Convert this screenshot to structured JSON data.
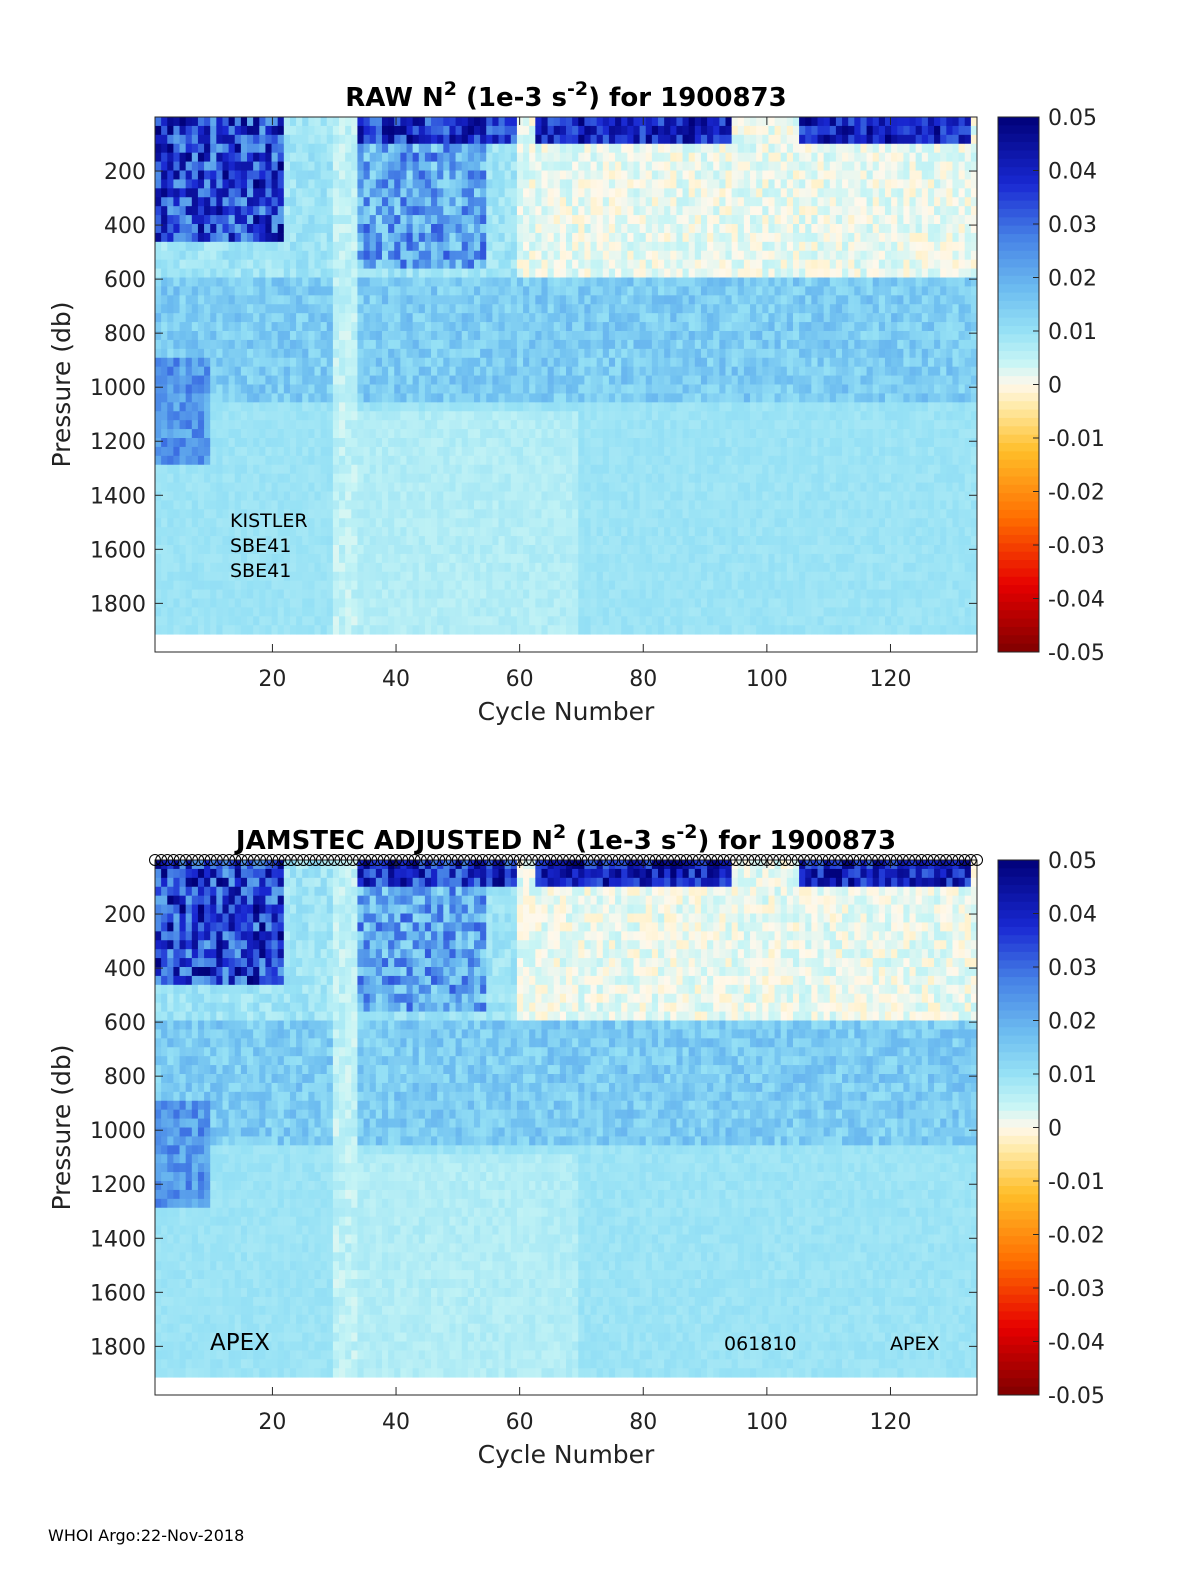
{
  "chart_data": [
    {
      "type": "heatmap",
      "title_parts": {
        "pre": "RAW N",
        "sup1": "2",
        "mid": " (1e-3 s",
        "sup2": "-2",
        "post": ") for 1900873"
      },
      "xlabel": "Cycle Number",
      "ylabel": "Pressure (db)",
      "xlim": [
        1,
        134
      ],
      "ylim": [
        0,
        1980
      ],
      "x_ticks": [
        20,
        40,
        60,
        80,
        100,
        120
      ],
      "y_ticks": [
        200,
        400,
        600,
        800,
        1000,
        1200,
        1400,
        1600,
        1800
      ],
      "colorbar": {
        "range": [
          -0.05,
          0.05
        ],
        "tick_labels": [
          "0.05",
          "0.04",
          "0.03",
          "0.02",
          "0.01",
          "0",
          "-0.01",
          "-0.02",
          "-0.03",
          "-0.04",
          "-0.05"
        ]
      },
      "annotations": [
        "KISTLER",
        "SBE41",
        "SBE41"
      ]
    },
    {
      "type": "heatmap",
      "title_parts": {
        "pre": "JAMSTEC  ADJUSTED N",
        "sup1": "2",
        "mid": " (1e-3 s",
        "sup2": "-2",
        "post": ") for 1900873"
      },
      "xlabel": "Cycle Number",
      "ylabel": "Pressure (db)",
      "xlim": [
        1,
        134
      ],
      "ylim": [
        0,
        1980
      ],
      "x_ticks": [
        20,
        40,
        60,
        80,
        100,
        120
      ],
      "y_ticks": [
        200,
        400,
        600,
        800,
        1000,
        1200,
        1400,
        1600,
        1800
      ],
      "colorbar": {
        "range": [
          -0.05,
          0.05
        ],
        "tick_labels": [
          "0.05",
          "0.04",
          "0.03",
          "0.02",
          "0.01",
          "0",
          "-0.01",
          "-0.02",
          "-0.03",
          "-0.04",
          "-0.05"
        ]
      },
      "annotations": [
        "APEX",
        "061810",
        "APEX"
      ]
    }
  ],
  "footer": "WHOI Argo:22-Nov-2018"
}
